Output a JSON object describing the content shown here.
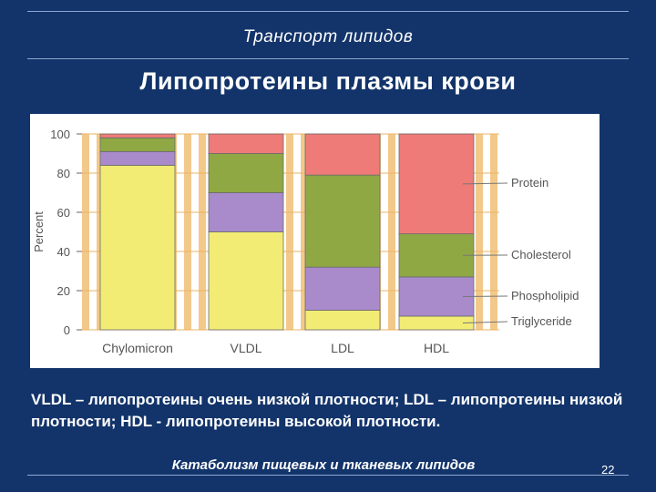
{
  "slide": {
    "header": "Транспорт липидов",
    "title": "Липопротеины плазмы крови",
    "caption": "VLDL – липопротеины очень низкой плотности; LDL – липопротеины низкой плотности; HDL - липопротеины высокой плотности.",
    "footer": "Катаболизм пищевых и тканевых липидов",
    "page_number": "22"
  },
  "colors": {
    "background": "#13346a",
    "stripe": "#f2c98a",
    "triglyceride": "#f2ec74",
    "phospholipid": "#a98bcc",
    "cholesterol": "#8fa844",
    "protein": "#ee7b78"
  },
  "chart_data": {
    "type": "bar",
    "stacked": true,
    "ylabel": "Percent",
    "ylim": [
      0,
      100
    ],
    "yticks": [
      0,
      20,
      40,
      60,
      80,
      100
    ],
    "categories": [
      "Chylomicron",
      "VLDL",
      "LDL",
      "HDL"
    ],
    "series": [
      {
        "name": "Triglyceride",
        "color": "#f2ec74",
        "values": [
          84,
          50,
          10,
          7
        ]
      },
      {
        "name": "Phospholipid",
        "color": "#a98bcc",
        "values": [
          7,
          20,
          22,
          20
        ]
      },
      {
        "name": "Cholesterol",
        "color": "#8fa844",
        "values": [
          7,
          20,
          47,
          22
        ]
      },
      {
        "name": "Protein",
        "color": "#ee7b78",
        "values": [
          2,
          10,
          21,
          51
        ]
      }
    ],
    "legend": "right"
  }
}
